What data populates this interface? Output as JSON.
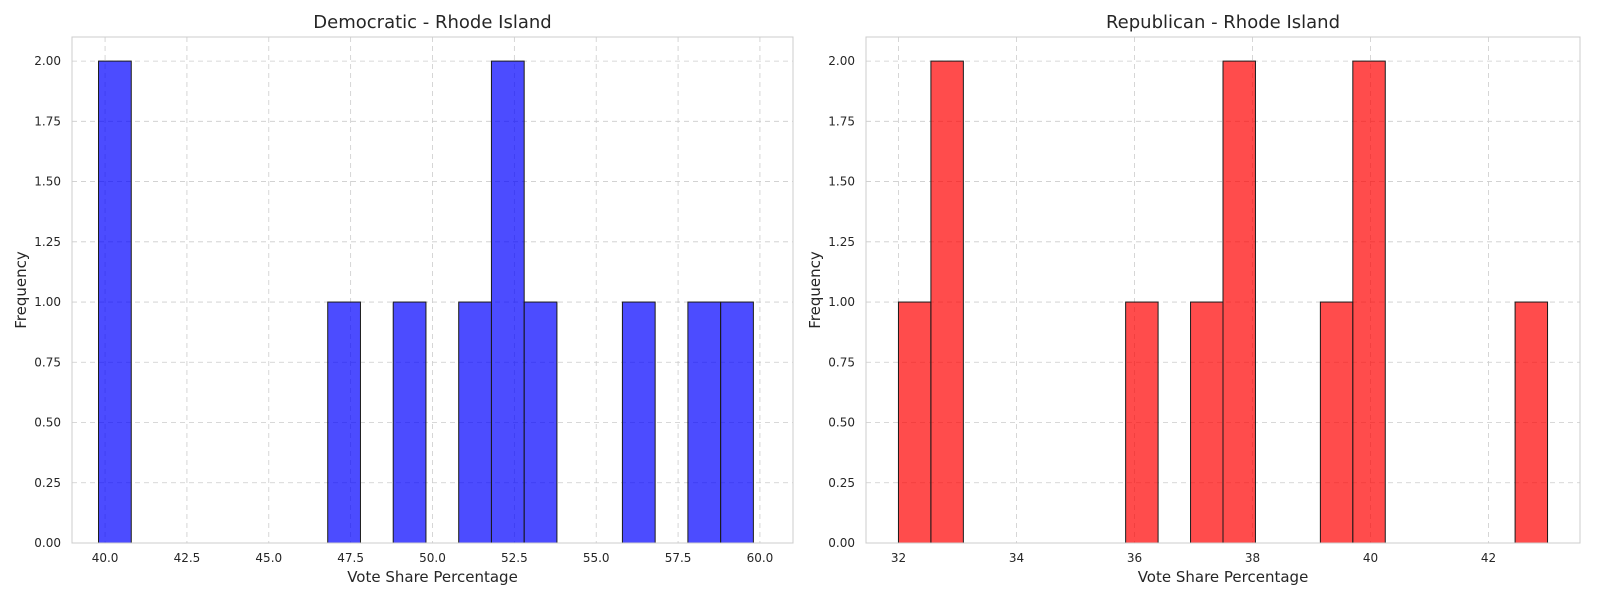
{
  "chart_data": [
    {
      "type": "bar",
      "title": "Democratic - Rhode Island",
      "xlabel": "Vote Share Percentage",
      "ylabel": "Frequency",
      "color": "#0000ff",
      "opacity": 0.7,
      "xlim": [
        38.99,
        61.01
      ],
      "ylim": [
        0,
        2.1
      ],
      "xticks": [
        40.0,
        42.5,
        45.0,
        47.5,
        50.0,
        52.5,
        55.0,
        57.5,
        60.0
      ],
      "xtick_labels": [
        "40.0",
        "42.5",
        "45.0",
        "47.5",
        "50.0",
        "52.5",
        "55.0",
        "57.5",
        "60.0"
      ],
      "yticks": [
        0,
        0.25,
        0.5,
        0.75,
        1.0,
        1.25,
        1.5,
        1.75,
        2.0
      ],
      "ytick_labels": [
        "0.00",
        "0.25",
        "0.50",
        "0.75",
        "1.00",
        "1.25",
        "1.50",
        "1.75",
        "2.00"
      ],
      "grid": true,
      "bins": [
        {
          "start": 39.8,
          "end": 40.8,
          "count": 2
        },
        {
          "start": 46.8,
          "end": 47.8,
          "count": 1
        },
        {
          "start": 48.8,
          "end": 49.8,
          "count": 1
        },
        {
          "start": 50.8,
          "end": 51.8,
          "count": 1
        },
        {
          "start": 51.8,
          "end": 52.8,
          "count": 2
        },
        {
          "start": 52.8,
          "end": 53.8,
          "count": 1
        },
        {
          "start": 55.8,
          "end": 56.8,
          "count": 1
        },
        {
          "start": 57.8,
          "end": 58.8,
          "count": 1
        },
        {
          "start": 58.8,
          "end": 59.8,
          "count": 1
        }
      ]
    },
    {
      "type": "bar",
      "title": "Republican - Rhode Island",
      "xlabel": "Vote Share Percentage",
      "ylabel": "Frequency",
      "color": "#ff0000",
      "opacity": 0.7,
      "xlim": [
        31.45,
        43.55
      ],
      "ylim": [
        0,
        2.1
      ],
      "xticks": [
        32,
        34,
        36,
        38,
        40,
        42
      ],
      "xtick_labels": [
        "32",
        "34",
        "36",
        "38",
        "40",
        "42"
      ],
      "yticks": [
        0,
        0.25,
        0.5,
        0.75,
        1.0,
        1.25,
        1.5,
        1.75,
        2.0
      ],
      "ytick_labels": [
        "0.00",
        "0.25",
        "0.50",
        "0.75",
        "1.00",
        "1.25",
        "1.50",
        "1.75",
        "2.00"
      ],
      "grid": true,
      "bins": [
        {
          "start": 32.0,
          "end": 32.55,
          "count": 1
        },
        {
          "start": 32.55,
          "end": 33.1,
          "count": 2
        },
        {
          "start": 35.85,
          "end": 36.4,
          "count": 1
        },
        {
          "start": 36.95,
          "end": 37.5,
          "count": 1
        },
        {
          "start": 37.5,
          "end": 38.05,
          "count": 2
        },
        {
          "start": 39.15,
          "end": 39.7,
          "count": 1
        },
        {
          "start": 39.7,
          "end": 40.25,
          "count": 2
        },
        {
          "start": 42.45,
          "end": 43.0,
          "count": 1
        }
      ]
    }
  ]
}
